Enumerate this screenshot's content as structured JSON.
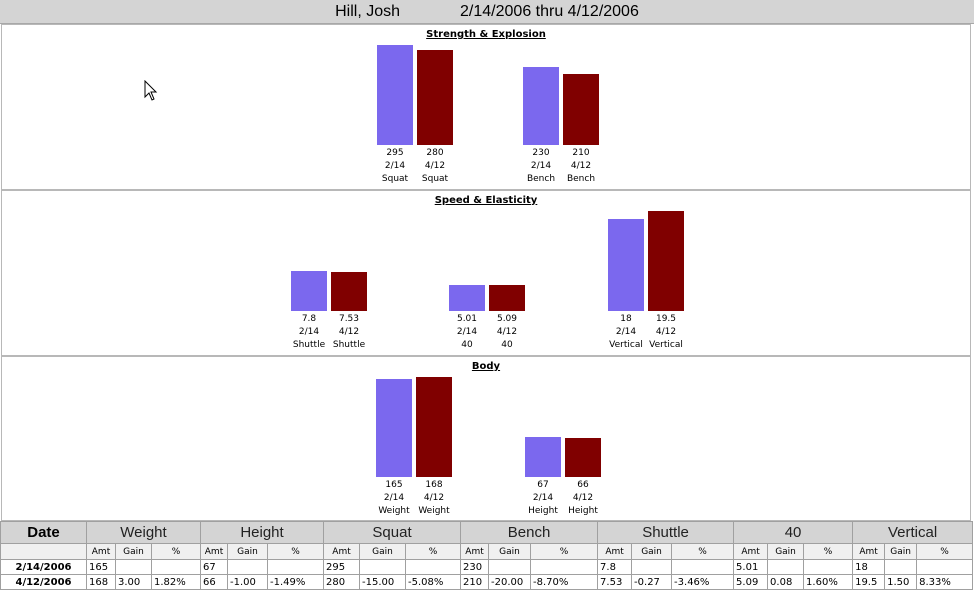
{
  "header": {
    "name": "Hill, Josh",
    "date_range": "2/14/2006 thru 4/12/2006"
  },
  "colors": {
    "first": "#7b68ee",
    "second": "#800000"
  },
  "panels": [
    {
      "title": "Strength & Explosion",
      "groups": [
        {
          "bars": [
            {
              "value": "295",
              "date": "2/14",
              "label": "Squat"
            },
            {
              "value": "280",
              "date": "4/12",
              "label": "Squat"
            }
          ]
        },
        {
          "bars": [
            {
              "value": "230",
              "date": "2/14",
              "label": "Bench"
            },
            {
              "value": "210",
              "date": "4/12",
              "label": "Bench"
            }
          ]
        }
      ]
    },
    {
      "title": "Speed & Elasticity",
      "groups": [
        {
          "bars": [
            {
              "value": "7.8",
              "date": "2/14",
              "label": "Shuttle"
            },
            {
              "value": "7.53",
              "date": "4/12",
              "label": "Shuttle"
            }
          ]
        },
        {
          "bars": [
            {
              "value": "5.01",
              "date": "2/14",
              "label": "40"
            },
            {
              "value": "5.09",
              "date": "4/12",
              "label": "40"
            }
          ]
        },
        {
          "bars": [
            {
              "value": "18",
              "date": "2/14",
              "label": "Vertical"
            },
            {
              "value": "19.5",
              "date": "4/12",
              "label": "Vertical"
            }
          ]
        }
      ]
    },
    {
      "title": "Body",
      "groups": [
        {
          "bars": [
            {
              "value": "165",
              "date": "2/14",
              "label": "Weight"
            },
            {
              "value": "168",
              "date": "4/12",
              "label": "Weight"
            }
          ]
        },
        {
          "bars": [
            {
              "value": "67",
              "date": "2/14",
              "label": "Height"
            },
            {
              "value": "66",
              "date": "4/12",
              "label": "Height"
            }
          ]
        }
      ]
    }
  ],
  "table": {
    "date_header": "Date",
    "metrics": [
      "Weight",
      "Height",
      "Squat",
      "Bench",
      "Shuttle",
      "40",
      "Vertical"
    ],
    "sub_headers": [
      "Amt",
      "Gain",
      "%"
    ],
    "rows": [
      {
        "date": "2/14/2006",
        "cells": [
          [
            "165",
            "",
            ""
          ],
          [
            "67",
            "",
            ""
          ],
          [
            "295",
            "",
            ""
          ],
          [
            "230",
            "",
            ""
          ],
          [
            "7.8",
            "",
            ""
          ],
          [
            "5.01",
            "",
            ""
          ],
          [
            "18",
            "",
            ""
          ]
        ]
      },
      {
        "date": "4/12/2006",
        "cells": [
          [
            "168",
            "3.00",
            "1.82%"
          ],
          [
            "66",
            "-1.00",
            "-1.49%"
          ],
          [
            "280",
            "-15.00",
            "-5.08%"
          ],
          [
            "210",
            "-20.00",
            "-8.70%"
          ],
          [
            "7.53",
            "-0.27",
            "-3.46%"
          ],
          [
            "5.09",
            "0.08",
            "1.60%"
          ],
          [
            "19.5",
            "1.50",
            "8.33%"
          ]
        ]
      }
    ]
  }
}
